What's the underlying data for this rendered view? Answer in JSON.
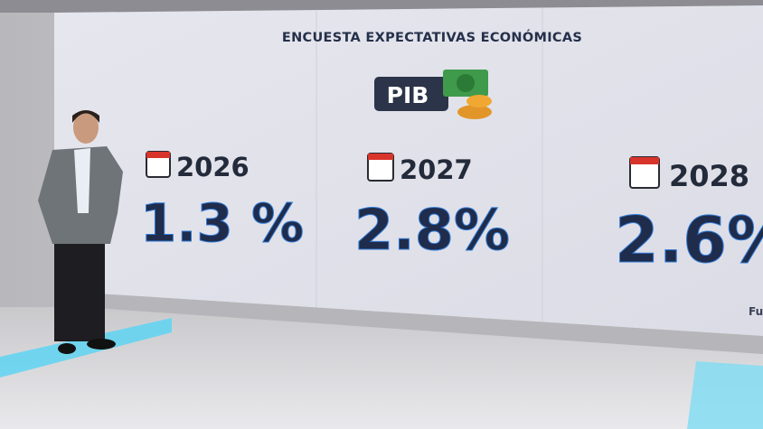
{
  "header": {
    "title": "ENCUESTA EXPECTATIVAS ECONÓMICAS"
  },
  "badge": {
    "label": "PIB"
  },
  "forecasts": [
    {
      "year": "2026",
      "value": "1.3 %"
    },
    {
      "year": "2027",
      "value": "2.8%"
    },
    {
      "year": "2028",
      "value": "2.6%"
    }
  ],
  "source": "Fu"
}
